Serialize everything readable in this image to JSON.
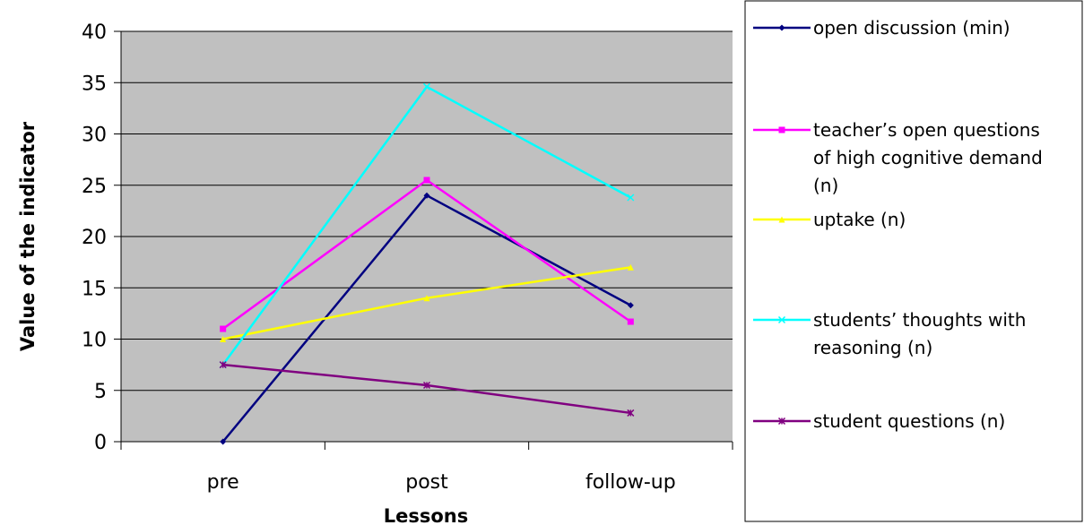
{
  "chart_data": {
    "type": "line",
    "categories": [
      "pre",
      "post",
      "follow-up"
    ],
    "xlabel": "Lessons",
    "ylabel": "Value of the indicator",
    "ylim": [
      0,
      40
    ],
    "yticks": [
      0,
      5,
      10,
      15,
      20,
      25,
      30,
      35,
      40
    ],
    "grid": true,
    "plot_background": "#c0c0c0",
    "legend_position": "right",
    "series": [
      {
        "name": "open discussion (min)",
        "color": "#000080",
        "marker": "diamond",
        "values": [
          0,
          24,
          13.3
        ],
        "legend_lines": [
          "open discussion (min)"
        ]
      },
      {
        "name": "teacher’s open questions of high cognitive demand (n)",
        "color": "#ff00ff",
        "marker": "square",
        "values": [
          11,
          25.5,
          11.7
        ],
        "legend_lines": [
          "teacher’s open questions",
          "of high cognitive demand",
          "(n)"
        ]
      },
      {
        "name": "uptake (n)",
        "color": "#ffff00",
        "marker": "triangle",
        "values": [
          10,
          14,
          17
        ],
        "legend_lines": [
          "uptake (n)"
        ]
      },
      {
        "name": "students’ thoughts with reasoning  (n)",
        "color": "#00ffff",
        "marker": "x",
        "values": [
          7.5,
          34.6,
          23.8
        ],
        "legend_lines": [
          "students’ thoughts with",
          "reasoning  (n)"
        ]
      },
      {
        "name": "student questions (n)",
        "color": "#800080",
        "marker": "star",
        "values": [
          7.5,
          5.5,
          2.8
        ],
        "legend_lines": [
          "student questions (n)"
        ]
      }
    ]
  }
}
